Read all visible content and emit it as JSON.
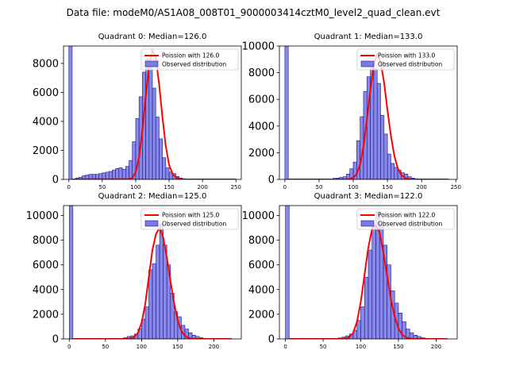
{
  "suptitle": "Data file: modeM0/AS1A08_008T01_9000003414cztM0_level2_quad_clean.evt",
  "colors": {
    "hist_fill": "#7b7be6",
    "hist_edge": "#1a1a8c",
    "poisson": "#ff0000"
  },
  "chart_data": [
    {
      "type": "bar",
      "title": "Quadrant 0: Median=126.0",
      "legend": [
        "Poission with 126.0",
        "Observed distribution"
      ],
      "legend_position": "top-right",
      "xlim": [
        -8,
        258
      ],
      "ylim": [
        0,
        9200
      ],
      "xticks": [
        0,
        50,
        100,
        150,
        200,
        250
      ],
      "yticks": [
        0,
        2000,
        4000,
        6000,
        8000
      ],
      "bin_width": 5,
      "bin_starts": [
        0,
        5,
        10,
        15,
        20,
        25,
        30,
        35,
        40,
        45,
        50,
        55,
        60,
        65,
        70,
        75,
        80,
        85,
        90,
        95,
        100,
        105,
        110,
        115,
        120,
        125,
        130,
        135,
        140,
        145,
        150,
        155,
        160,
        165,
        170,
        175,
        180,
        185,
        190,
        195,
        200
      ],
      "counts": [
        9200,
        0,
        100,
        150,
        250,
        300,
        350,
        350,
        350,
        400,
        450,
        500,
        550,
        650,
        750,
        800,
        700,
        900,
        1300,
        2600,
        4200,
        5700,
        7400,
        8300,
        8100,
        6300,
        4300,
        2800,
        1500,
        800,
        500,
        400,
        200,
        100,
        50,
        20,
        10,
        5,
        5,
        0,
        5
      ],
      "poisson_x": [
        5,
        90,
        95,
        100,
        105,
        110,
        115,
        120,
        125,
        130,
        135,
        140,
        145,
        150,
        155,
        160,
        165,
        170,
        175,
        250
      ],
      "poisson_y": [
        0,
        20,
        100,
        500,
        1500,
        3400,
        5700,
        7800,
        8900,
        8400,
        6600,
        4300,
        2300,
        1000,
        400,
        150,
        40,
        10,
        0,
        0
      ]
    },
    {
      "type": "bar",
      "title": "Quadrant 1: Median=133.0",
      "legend": [
        "Poission with 133.0",
        "Observed distribution"
      ],
      "legend_position": "top-right",
      "xlim": [
        -8,
        252
      ],
      "ylim": [
        0,
        10000
      ],
      "xticks": [
        0,
        50,
        100,
        150,
        200,
        250
      ],
      "yticks": [
        0,
        2000,
        4000,
        6000,
        8000,
        10000
      ],
      "bin_width": 5,
      "bin_starts": [
        0,
        5,
        10,
        15,
        20,
        25,
        30,
        35,
        40,
        45,
        50,
        55,
        60,
        65,
        70,
        75,
        80,
        85,
        90,
        95,
        100,
        105,
        110,
        115,
        120,
        125,
        130,
        135,
        140,
        145,
        150,
        155,
        160,
        165,
        170,
        175,
        180,
        185,
        190,
        195,
        200,
        205
      ],
      "counts": [
        10000,
        0,
        0,
        0,
        0,
        0,
        0,
        0,
        0,
        0,
        0,
        0,
        20,
        30,
        80,
        100,
        150,
        200,
        400,
        800,
        1300,
        2900,
        4700,
        6600,
        7700,
        8800,
        8300,
        7200,
        4800,
        3400,
        1900,
        1200,
        900,
        700,
        500,
        400,
        200,
        100,
        50,
        30,
        10,
        5
      ],
      "poisson_x": [
        5,
        90,
        95,
        100,
        105,
        110,
        115,
        120,
        125,
        130,
        135,
        140,
        145,
        150,
        155,
        160,
        165,
        170,
        175,
        180,
        185,
        240
      ],
      "poisson_y": [
        0,
        5,
        30,
        120,
        400,
        1100,
        2500,
        4500,
        6700,
        8600,
        9400,
        8800,
        7300,
        5200,
        3300,
        1800,
        850,
        350,
        130,
        40,
        10,
        0
      ]
    },
    {
      "type": "bar",
      "title": "Quadrant 2: Median=125.0",
      "legend": [
        "Poission with 125.0",
        "Observed distribution"
      ],
      "legend_position": "top-right",
      "xlim": [
        -8,
        238
      ],
      "ylim": [
        0,
        10800
      ],
      "xticks": [
        0,
        50,
        100,
        150,
        200
      ],
      "yticks": [
        0,
        2000,
        4000,
        6000,
        8000,
        10000
      ],
      "bin_width": 5,
      "bin_starts": [
        0,
        5,
        10,
        15,
        20,
        25,
        30,
        35,
        40,
        45,
        50,
        55,
        60,
        65,
        70,
        75,
        80,
        85,
        90,
        95,
        100,
        105,
        110,
        115,
        120,
        125,
        130,
        135,
        140,
        145,
        150,
        155,
        160,
        165,
        170,
        175,
        180,
        185,
        190
      ],
      "counts": [
        10800,
        0,
        0,
        0,
        0,
        0,
        20,
        0,
        0,
        0,
        0,
        0,
        0,
        0,
        30,
        100,
        200,
        250,
        400,
        800,
        1600,
        2600,
        5600,
        6100,
        7600,
        9300,
        7600,
        6000,
        3700,
        2200,
        1800,
        1100,
        800,
        500,
        300,
        200,
        100,
        50,
        20
      ],
      "poisson_x": [
        5,
        80,
        85,
        90,
        95,
        100,
        105,
        110,
        115,
        120,
        125,
        130,
        135,
        140,
        145,
        150,
        155,
        160,
        165,
        170,
        175,
        225
      ],
      "poisson_y": [
        0,
        5,
        30,
        150,
        500,
        1300,
        2800,
        5000,
        7200,
        8500,
        9000,
        8200,
        6600,
        4700,
        2900,
        1500,
        650,
        250,
        80,
        20,
        0,
        0
      ]
    },
    {
      "type": "bar",
      "title": "Quadrant 3: Median=122.0",
      "legend": [
        "Poission with 122.0",
        "Observed distribution"
      ],
      "legend_position": "top-right",
      "xlim": [
        -8,
        228
      ],
      "ylim": [
        0,
        10800
      ],
      "xticks": [
        0,
        50,
        100,
        150,
        200
      ],
      "yticks": [
        0,
        2000,
        4000,
        6000,
        8000,
        10000
      ],
      "bin_width": 5,
      "bin_starts": [
        0,
        5,
        10,
        15,
        20,
        25,
        30,
        35,
        40,
        45,
        50,
        55,
        60,
        65,
        70,
        75,
        80,
        85,
        90,
        95,
        100,
        105,
        110,
        115,
        120,
        125,
        130,
        135,
        140,
        145,
        150,
        155,
        160,
        165,
        170,
        175,
        180,
        185,
        190,
        195
      ],
      "counts": [
        10800,
        0,
        0,
        0,
        0,
        0,
        0,
        0,
        0,
        0,
        0,
        0,
        20,
        40,
        80,
        150,
        250,
        400,
        700,
        1500,
        2600,
        5000,
        7200,
        9100,
        10300,
        9200,
        7600,
        6000,
        3900,
        2900,
        2100,
        1400,
        800,
        500,
        300,
        200,
        100,
        50,
        20,
        10
      ],
      "poisson_x": [
        5,
        75,
        80,
        85,
        90,
        95,
        100,
        105,
        110,
        115,
        120,
        125,
        130,
        135,
        140,
        145,
        150,
        155,
        160,
        165,
        170,
        215
      ],
      "poisson_y": [
        0,
        5,
        30,
        150,
        500,
        1400,
        3000,
        5200,
        7400,
        8900,
        9200,
        8600,
        7000,
        5100,
        3200,
        1800,
        850,
        350,
        120,
        40,
        0,
        0
      ]
    }
  ]
}
